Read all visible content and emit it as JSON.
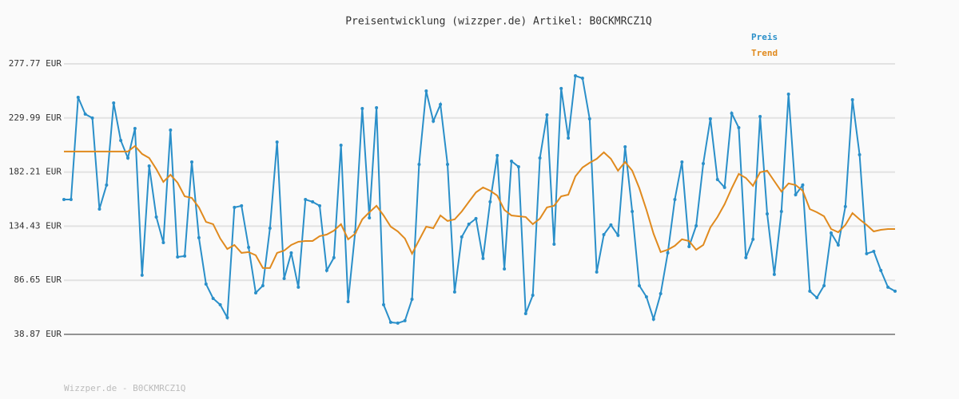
{
  "chart_data": {
    "type": "line",
    "title": "Preisentwicklung (wizzper.de) Artikel: B0CKMRCZ1Q",
    "categories": [
      null,
      null,
      null,
      null,
      null,
      null,
      null,
      null,
      null,
      null,
      null,
      null,
      null,
      null,
      null,
      null,
      null,
      null,
      null,
      null,
      null,
      null,
      null,
      null,
      null,
      null,
      null,
      null,
      null,
      null,
      null,
      null,
      null,
      null,
      null,
      null,
      null,
      null,
      null,
      null,
      null,
      null,
      null,
      null,
      null,
      null,
      null,
      null,
      null,
      null,
      null,
      null,
      null,
      null,
      null,
      null,
      null,
      null,
      null,
      null,
      null,
      null,
      null,
      null,
      null,
      null,
      null,
      null,
      null,
      null,
      null,
      null,
      null,
      null,
      null,
      null,
      null,
      null,
      null,
      null,
      null,
      null,
      null,
      null,
      null,
      null,
      null,
      null,
      null,
      null,
      null,
      null,
      null,
      null,
      null,
      null,
      null,
      null,
      null,
      null,
      null,
      null,
      null,
      null,
      null,
      null,
      null,
      null,
      null,
      null,
      null,
      null,
      null,
      null,
      null,
      null,
      null,
      null
    ],
    "series": [
      {
        "name": "Preis",
        "color": "#2a8fc9",
        "markers": true,
        "values": [
          158.0,
          158.0,
          248.2,
          233.4,
          229.9,
          149.5,
          170.7,
          243.2,
          210.1,
          194.6,
          220.7,
          91.1,
          187.6,
          142.5,
          119.9,
          219.3,
          107.2,
          108.0,
          191.1,
          124.2,
          83.3,
          70.6,
          65.0,
          53.7,
          151.0,
          152.4,
          115.7,
          75.5,
          81.9,
          132.6,
          208.7,
          88.2,
          110.8,
          80.5,
          158.0,
          155.9,
          152.4,
          95.3,
          106.6,
          205.9,
          67.8,
          129.1,
          238.3,
          141.8,
          239.0,
          65.0,
          49.5,
          48.8,
          50.9,
          69.9,
          189.0,
          253.8,
          227.1,
          241.9,
          189.0,
          76.3,
          124.9,
          136.2,
          141.1,
          105.9,
          155.9,
          196.8,
          96.7,
          191.8,
          186.9,
          57.2,
          73.4,
          194.6,
          232.7,
          118.5,
          256.0,
          212.2,
          267.2,
          265.1,
          229.2,
          93.9,
          127.0,
          135.5,
          126.3,
          204.5,
          147.4,
          81.9,
          72.0,
          52.3,
          74.8,
          110.8,
          158.0,
          191.1,
          116.4,
          134.7,
          189.7,
          229.2,
          175.6,
          168.6,
          234.1,
          221.4,
          106.6,
          122.8,
          231.3,
          145.3,
          91.8,
          147.4,
          251.0,
          162.2,
          170.7,
          77.0,
          71.3,
          81.9,
          128.4,
          117.8,
          151.7,
          246.1,
          197.5,
          110.1,
          112.2,
          95.3,
          80.5,
          77.0
        ]
      },
      {
        "name": "Trend",
        "color": "#e08a1e",
        "markers": false,
        "values": [
          200.3,
          200.3,
          200.3,
          200.3,
          200.3,
          200.3,
          200.3,
          200.3,
          200.3,
          200.3,
          205.2,
          198.2,
          194.6,
          184.8,
          173.5,
          179.8,
          172.8,
          160.8,
          159.4,
          151.0,
          138.2,
          136.2,
          123.5,
          114.3,
          117.8,
          110.8,
          111.5,
          108.7,
          97.4,
          97.4,
          110.8,
          112.9,
          117.8,
          120.6,
          121.3,
          121.3,
          125.6,
          127.0,
          130.5,
          136.2,
          122.8,
          127.7,
          140.4,
          146.7,
          152.4,
          143.9,
          134.0,
          129.8,
          123.5,
          110.1,
          122.1,
          134.0,
          132.6,
          143.9,
          139.0,
          140.4,
          147.4,
          155.9,
          164.3,
          168.6,
          165.7,
          161.5,
          148.8,
          143.9,
          143.2,
          142.5,
          136.2,
          141.1,
          151.0,
          152.4,
          160.8,
          162.2,
          178.4,
          186.2,
          190.4,
          193.9,
          199.6,
          193.9,
          183.4,
          191.1,
          183.4,
          167.9,
          148.8,
          127.7,
          111.5,
          113.6,
          117.1,
          122.8,
          121.3,
          113.6,
          117.8,
          133.3,
          142.5,
          153.8,
          167.9,
          180.6,
          177.0,
          170.0,
          182.0,
          183.4,
          174.2,
          165.0,
          172.1,
          170.7,
          165.7,
          149.5,
          146.7,
          143.2,
          131.9,
          129.1,
          135.5,
          146.0,
          140.4,
          135.5,
          129.8,
          131.2,
          131.9,
          131.9
        ]
      }
    ],
    "ylim": [
      38.87,
      277.77
    ],
    "yticks": [
      {
        "value": 38.87,
        "label": "38.87 EUR"
      },
      {
        "value": 86.65,
        "label": "86.65 EUR"
      },
      {
        "value": 134.43,
        "label": "134.43 EUR"
      },
      {
        "value": 182.21,
        "label": "182.21 EUR"
      },
      {
        "value": 229.99,
        "label": "229.99 EUR"
      },
      {
        "value": 277.77,
        "label": "277.77 EUR"
      }
    ],
    "grid": true,
    "legend": "top-right"
  },
  "footer": "Wizzper.de - B0CKMRCZ1Q"
}
